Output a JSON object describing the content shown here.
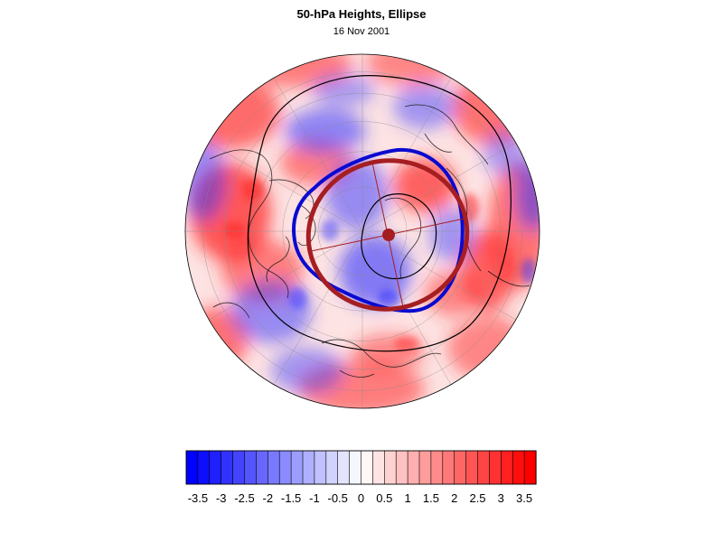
{
  "header": {
    "title": "50-hPa Heights, Ellipse",
    "date": "16 Nov 2001"
  },
  "map": {
    "projection": "polar stereographic, north pole centered",
    "field": "50-hPa height anomaly",
    "features": [
      "coastlines",
      "lat-lon graticule",
      "black height contours",
      "blue observed vortex edge",
      "red fitted ellipse",
      "ellipse center dot with axes"
    ],
    "colors": {
      "negative": "#3333ff",
      "positive": "#ff2a2a",
      "ellipse": "#a51e22",
      "vortex_edge": "#0a0ad0",
      "contour": "#000000"
    }
  },
  "colorbar": {
    "tick_labels": [
      "-3.5",
      "-3",
      "-2.5",
      "-2",
      "-1.5",
      "-1",
      "-0.5",
      "0",
      "0.5",
      "1",
      "1.5",
      "2",
      "2.5",
      "3",
      "3.5"
    ],
    "min": -3.75,
    "max": 3.75,
    "interval": 0.25,
    "bins": 30,
    "colors": {
      "low": "#0000ff",
      "mid": "#ffffff",
      "high": "#ff0000"
    }
  }
}
